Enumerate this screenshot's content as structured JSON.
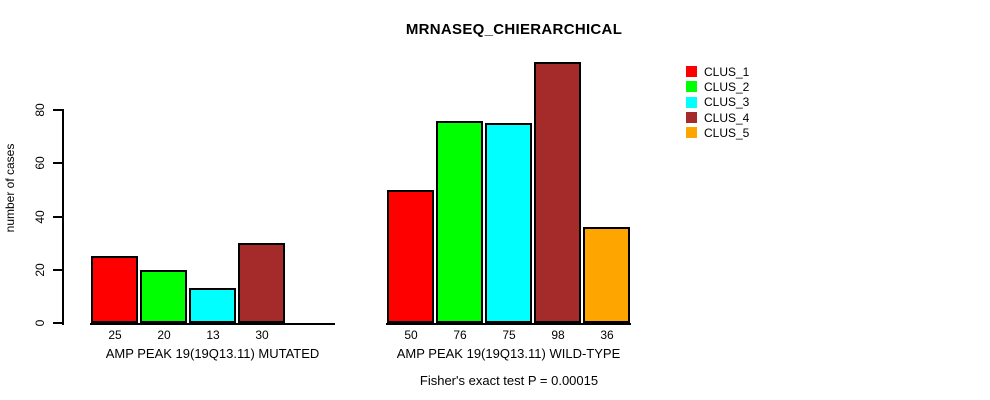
{
  "chart_data": {
    "type": "bar",
    "title": "MRNASEQ_CHIERARCHICAL",
    "xlabel": "",
    "ylabel": "number of cases",
    "ylim": [
      0,
      80
    ],
    "yticks": [
      0,
      20,
      40,
      60,
      80
    ],
    "grid": false,
    "legend_position": "top-right",
    "series": [
      {
        "name": "CLUS_1",
        "color": "#FF0000"
      },
      {
        "name": "CLUS_2",
        "color": "#00FF00"
      },
      {
        "name": "CLUS_3",
        "color": "#00FFFF"
      },
      {
        "name": "CLUS_4",
        "color": "#A52A2A"
      },
      {
        "name": "CLUS_5",
        "color": "#FFA500"
      }
    ],
    "groups": [
      {
        "label": "AMP PEAK 19(19Q13.11) MUTATED",
        "values": [
          25,
          20,
          13,
          30,
          null
        ],
        "value_labels": [
          "25",
          "20",
          "13",
          "30",
          ""
        ]
      },
      {
        "label": "AMP PEAK 19(19Q13.11) WILD-TYPE",
        "values": [
          50,
          76,
          75,
          98,
          36
        ],
        "value_labels": [
          "50",
          "76",
          "75",
          "98",
          "36"
        ]
      }
    ],
    "annotation": "Fisher's exact test P = 0.00015"
  },
  "legend": {
    "items": [
      {
        "label": "CLUS_1",
        "color": "#FF0000"
      },
      {
        "label": "CLUS_2",
        "color": "#00FF00"
      },
      {
        "label": "CLUS_3",
        "color": "#00FFFF"
      },
      {
        "label": "CLUS_4",
        "color": "#A52A2A"
      },
      {
        "label": "CLUS_5",
        "color": "#FFA500"
      }
    ]
  }
}
